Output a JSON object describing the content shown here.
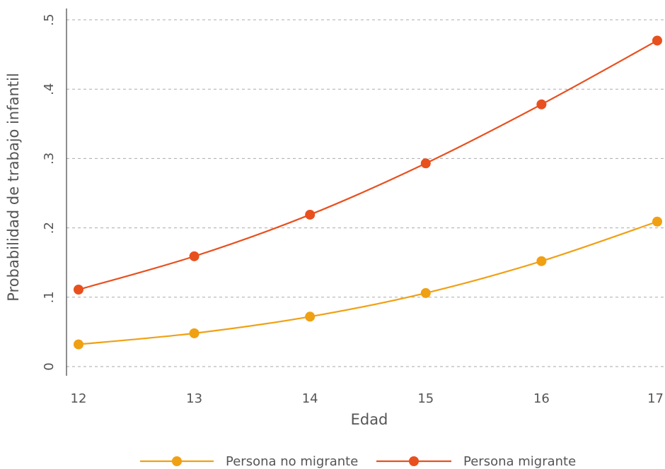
{
  "chart_data": {
    "type": "line",
    "title": "",
    "xlabel": "Edad",
    "ylabel": "Probabilidad de trabajo infantil",
    "x": [
      12,
      13,
      14,
      15,
      16,
      17
    ],
    "x_tick_labels": [
      "12",
      "13",
      "14",
      "15",
      "16",
      "17"
    ],
    "ylim": [
      0,
      0.5
    ],
    "y_ticks": [
      0,
      0.1,
      0.2,
      0.3,
      0.4,
      0.5
    ],
    "y_tick_labels": [
      "0",
      ".1",
      ".2",
      ".3",
      ".4",
      ".5"
    ],
    "grid": true,
    "legend_position": "bottom",
    "series": [
      {
        "name": "Persona no migrante",
        "color": "#f0a013",
        "values": [
          0.032,
          0.048,
          0.072,
          0.106,
          0.152,
          0.209
        ]
      },
      {
        "name": "Persona migrante",
        "color": "#e8501e",
        "values": [
          0.111,
          0.159,
          0.219,
          0.293,
          0.378,
          0.47
        ]
      }
    ]
  }
}
